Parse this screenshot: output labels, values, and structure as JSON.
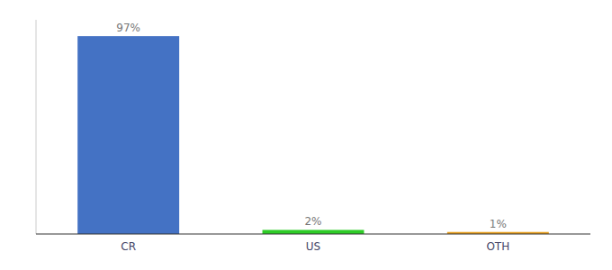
{
  "chart_data": {
    "type": "bar",
    "categories": [
      "CR",
      "US",
      "OTH"
    ],
    "values": [
      97,
      2,
      1
    ],
    "value_labels": [
      "97%",
      "2%",
      "1%"
    ],
    "colors": [
      "#4472C4",
      "#2ECC27",
      "#E8A020"
    ],
    "ylim": [
      0,
      105
    ],
    "data_labels": true,
    "tick_labels": "x",
    "grid": false
  }
}
